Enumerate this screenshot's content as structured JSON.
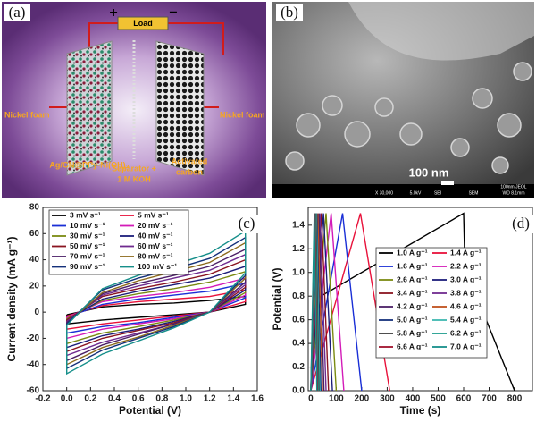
{
  "panel_a": {
    "label": "(a)",
    "load": "Load",
    "plus": "+",
    "minus": "−",
    "left_electrode": "Nickel foam",
    "right_electrode": "Nickel foam",
    "anode": "Ag/GN@PPy-Ni(OH)₂",
    "separator": [
      "Separator +",
      "1 M KOH"
    ],
    "cathode": [
      "Activated",
      "carbon"
    ]
  },
  "panel_b": {
    "label": "(b)",
    "scale_bar": "100 nm",
    "info_top": "100nm JEOL",
    "info": [
      "X 30,000",
      "5.0kV",
      "SEI",
      "SEM",
      "WD 8.1mm"
    ]
  },
  "chart_data": [
    {
      "type": "line",
      "panel_label": "(c)",
      "xlabel": "Potential (V)",
      "ylabel": "Current density (mA g⁻¹)",
      "xlim": [
        -0.2,
        1.6
      ],
      "xticks": [
        -0.2,
        {
          "value": 0,
          "label": "0.0"
        },
        0.2,
        0.4,
        0.6,
        0.8,
        {
          "value": 1,
          "label": "1.0"
        },
        1.2,
        1.4,
        1.6
      ],
      "ylim": [
        -60,
        80
      ],
      "yticks": [
        -60,
        -40,
        -20,
        0,
        20,
        40,
        60,
        80
      ],
      "series": [
        {
          "name": "3 mV s⁻¹",
          "color": "#000000",
          "x": [
            0,
            0.3,
            0.6,
            0.9,
            1.2,
            1.5,
            1.5,
            1.2,
            0.9,
            0.6,
            0.3,
            0,
            0
          ],
          "values": [
            -2,
            4,
            6,
            7,
            9,
            12,
            6,
            0,
            -2,
            -4,
            -6,
            -9,
            -2
          ]
        },
        {
          "name": "5 mV s⁻¹",
          "color": "#e8113a",
          "x": [
            0,
            0.3,
            0.6,
            0.9,
            1.2,
            1.5,
            1.5,
            1.2,
            0.9,
            0.6,
            0.3,
            0,
            0
          ],
          "values": [
            -3,
            5,
            8,
            10,
            12,
            17,
            8,
            0,
            -3,
            -6,
            -9,
            -13,
            -3
          ]
        },
        {
          "name": "10 mV s⁻¹",
          "color": "#1a2fd6",
          "x": [
            0,
            0.3,
            0.6,
            0.9,
            1.2,
            1.5,
            1.5,
            1.2,
            0.9,
            0.6,
            0.3,
            0,
            0
          ],
          "values": [
            -4,
            6,
            10,
            13,
            16,
            22,
            11,
            0,
            -4,
            -8,
            -11,
            -16,
            -4
          ]
        },
        {
          "name": "20 mV s⁻¹",
          "color": "#d31bb8",
          "x": [
            0,
            0.3,
            0.6,
            0.9,
            1.2,
            1.5,
            1.5,
            1.2,
            0.9,
            0.6,
            0.3,
            0,
            0
          ],
          "values": [
            -4,
            8,
            12,
            15,
            19,
            26,
            13,
            0,
            -5,
            -9,
            -13,
            -20,
            -4
          ]
        },
        {
          "name": "30 mV s⁻¹",
          "color": "#7a8a12",
          "x": [
            0,
            0.3,
            0.6,
            0.9,
            1.2,
            1.5,
            1.5,
            1.2,
            0.9,
            0.6,
            0.3,
            0,
            0
          ],
          "values": [
            -5,
            9,
            14,
            18,
            23,
            31,
            15,
            0,
            -6,
            -11,
            -16,
            -24,
            -5
          ]
        },
        {
          "name": "40 mV s⁻¹",
          "color": "#1c1e7a",
          "x": [
            0,
            0.3,
            0.6,
            0.9,
            1.2,
            1.5,
            1.5,
            1.2,
            0.9,
            0.6,
            0.3,
            0,
            0
          ],
          "values": [
            -6,
            10,
            16,
            21,
            26,
            35,
            17,
            0,
            -7,
            -13,
            -18,
            -27,
            -6
          ]
        },
        {
          "name": "50 mV s⁻¹",
          "color": "#8a1420",
          "x": [
            0,
            0.3,
            0.6,
            0.9,
            1.2,
            1.5,
            1.5,
            1.2,
            0.9,
            0.6,
            0.3,
            0,
            0
          ],
          "values": [
            -6,
            12,
            18,
            23,
            29,
            40,
            19,
            0,
            -8,
            -14,
            -20,
            -30,
            -6
          ]
        },
        {
          "name": "60 mV s⁻¹",
          "color": "#6f2a8f",
          "x": [
            0,
            0.3,
            0.6,
            0.9,
            1.2,
            1.5,
            1.5,
            1.2,
            0.9,
            0.6,
            0.3,
            0,
            0
          ],
          "values": [
            -7,
            13,
            20,
            26,
            32,
            44,
            21,
            0,
            -9,
            -16,
            -23,
            -33,
            -7
          ]
        },
        {
          "name": "70 mV s⁻¹",
          "color": "#4b1f66",
          "x": [
            0,
            0.3,
            0.6,
            0.9,
            1.2,
            1.5,
            1.5,
            1.2,
            0.9,
            0.6,
            0.3,
            0,
            0
          ],
          "values": [
            -8,
            14,
            22,
            28,
            35,
            48,
            23,
            0,
            -9,
            -17,
            -25,
            -37,
            -8
          ]
        },
        {
          "name": "80 mV s⁻¹",
          "color": "#8c6a1c",
          "x": [
            0,
            0.3,
            0.6,
            0.9,
            1.2,
            1.5,
            1.5,
            1.2,
            0.9,
            0.6,
            0.3,
            0,
            0
          ],
          "values": [
            -9,
            15,
            24,
            31,
            38,
            53,
            26,
            0,
            -10,
            -19,
            -27,
            -40,
            -9
          ]
        },
        {
          "name": "90 mV s⁻¹",
          "color": "#14307a",
          "x": [
            0,
            0.3,
            0.6,
            0.9,
            1.2,
            1.5,
            1.5,
            1.2,
            0.9,
            0.6,
            0.3,
            0,
            0
          ],
          "values": [
            -9,
            17,
            26,
            33,
            41,
            57,
            28,
            0,
            -11,
            -20,
            -29,
            -43,
            -9
          ]
        },
        {
          "name": "100 mV s⁻¹",
          "color": "#168f8a",
          "x": [
            0,
            0.3,
            0.6,
            0.9,
            1.2,
            1.5,
            1.5,
            1.2,
            0.9,
            0.6,
            0.3,
            0,
            0
          ],
          "values": [
            -10,
            18,
            28,
            36,
            45,
            62,
            30,
            0,
            -12,
            -22,
            -32,
            -47,
            -10
          ]
        }
      ]
    },
    {
      "type": "line",
      "panel_label": "(d)",
      "xlabel": "Time (s)",
      "ylabel": "Potential (V)",
      "xlim": [
        -10,
        870
      ],
      "xticks": [
        0,
        100,
        200,
        300,
        400,
        500,
        600,
        700,
        800
      ],
      "ylim": [
        0,
        1.55
      ],
      "yticks": [
        {
          "value": 0,
          "label": "0.0"
        },
        0.2,
        0.4,
        0.6,
        0.8,
        {
          "value": 1,
          "label": "1.0"
        },
        1.2,
        1.4
      ],
      "series": [
        {
          "name": "1.0 A g⁻¹",
          "color": "#000000",
          "x": [
            0,
            40,
            600,
            605,
            800
          ],
          "values": [
            0,
            0.8,
            1.5,
            1.05,
            0
          ]
        },
        {
          "name": "1.4 A g⁻¹",
          "color": "#e8113a",
          "x": [
            0,
            195,
            310
          ],
          "values": [
            0,
            1.5,
            0
          ]
        },
        {
          "name": "1.6 A g⁻¹",
          "color": "#1a2fd6",
          "x": [
            0,
            125,
            200
          ],
          "values": [
            0,
            1.5,
            0
          ]
        },
        {
          "name": "2.2 A g⁻¹",
          "color": "#d31bb8",
          "x": [
            0,
            80,
            130
          ],
          "values": [
            0,
            1.5,
            0
          ]
        },
        {
          "name": "2.6 A g⁻¹",
          "color": "#7a8a12",
          "x": [
            0,
            60,
            100
          ],
          "values": [
            0,
            1.5,
            0
          ]
        },
        {
          "name": "3.0 A g⁻¹",
          "color": "#1c1e7a",
          "x": [
            0,
            50,
            85
          ],
          "values": [
            0,
            1.5,
            0
          ]
        },
        {
          "name": "3.4 A g⁻¹",
          "color": "#8a1420",
          "x": [
            0,
            42,
            70
          ],
          "values": [
            0,
            1.5,
            0
          ]
        },
        {
          "name": "3.8 A g⁻¹",
          "color": "#6f2a8f",
          "x": [
            0,
            36,
            60
          ],
          "values": [
            0,
            1.5,
            0
          ]
        },
        {
          "name": "4.2 A g⁻¹",
          "color": "#4b1f66",
          "x": [
            0,
            32,
            52
          ],
          "values": [
            0,
            1.5,
            0
          ]
        },
        {
          "name": "4.6 A g⁻¹",
          "color": "#c0501c",
          "x": [
            0,
            28,
            46
          ],
          "values": [
            0,
            1.5,
            0
          ]
        },
        {
          "name": "5.0 A g⁻¹",
          "color": "#14307a",
          "x": [
            0,
            24,
            40
          ],
          "values": [
            0,
            1.5,
            0
          ]
        },
        {
          "name": "5.4 A g⁻¹",
          "color": "#3fb8b0",
          "x": [
            0,
            22,
            36
          ],
          "values": [
            0,
            1.5,
            0
          ]
        },
        {
          "name": "5.8 A g⁻¹",
          "color": "#3a3a3a",
          "x": [
            0,
            20,
            32
          ],
          "values": [
            0,
            1.5,
            0
          ]
        },
        {
          "name": "6.2 A g⁻¹",
          "color": "#1d9c8c",
          "x": [
            0,
            18,
            29
          ],
          "values": [
            0,
            1.5,
            0
          ]
        },
        {
          "name": "6.6 A g⁻¹",
          "color": "#a0122c",
          "x": [
            0,
            16,
            26
          ],
          "values": [
            0,
            1.5,
            0
          ]
        },
        {
          "name": "7.0 A g⁻¹",
          "color": "#168f8a",
          "x": [
            0,
            14,
            24
          ],
          "values": [
            0,
            1.5,
            0
          ]
        }
      ]
    }
  ]
}
